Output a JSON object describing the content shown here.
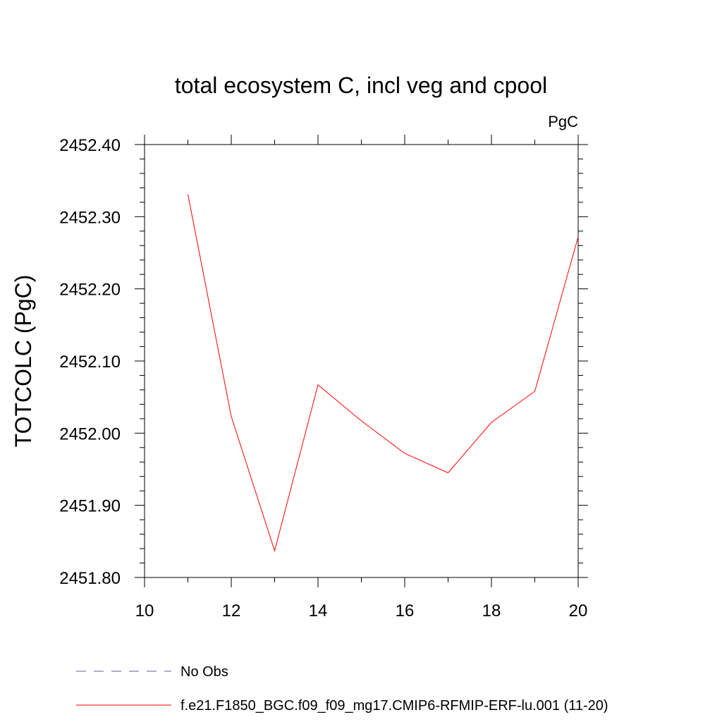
{
  "chart_data": {
    "type": "line",
    "title": "total ecosystem C, incl veg and cpool",
    "units_label": "PgC",
    "ylabel": "TOTCOLC  (PgC)",
    "xlabel": "",
    "xlim": [
      10,
      20
    ],
    "ylim": [
      2451.8,
      2452.4
    ],
    "x_ticks": [
      10,
      12,
      14,
      16,
      18,
      20
    ],
    "x_tick_labels": [
      "10",
      "12",
      "14",
      "16",
      "18",
      "20"
    ],
    "y_ticks": [
      2451.8,
      2451.9,
      2452.0,
      2452.1,
      2452.2,
      2452.3,
      2452.4
    ],
    "y_tick_labels": [
      "2451.80",
      "2451.90",
      "2452.00",
      "2452.10",
      "2452.20",
      "2452.30",
      "2452.40"
    ],
    "legend_placement": "bottom",
    "series": [
      {
        "name": "f.e21.F1850_BGC.f09_f09_mg17.CMIP6-RFMIP-ERF-lu.001 (11-20)",
        "color": "#ff0000",
        "style": "solid",
        "x": [
          11,
          12,
          13,
          14,
          15,
          16,
          17,
          18,
          19,
          20
        ],
        "y": [
          2452.331,
          2452.023,
          2451.837,
          2452.067,
          2452.017,
          2451.972,
          2451.945,
          2452.015,
          2452.058,
          2452.272
        ]
      }
    ],
    "legend": [
      {
        "label": "No Obs",
        "color": "#6a5a9a",
        "style": "dashed"
      },
      {
        "label": "f.e21.F1850_BGC.f09_f09_mg17.CMIP6-RFMIP-ERF-lu.001 (11-20)",
        "color": "#ff0000",
        "style": "solid"
      }
    ]
  }
}
